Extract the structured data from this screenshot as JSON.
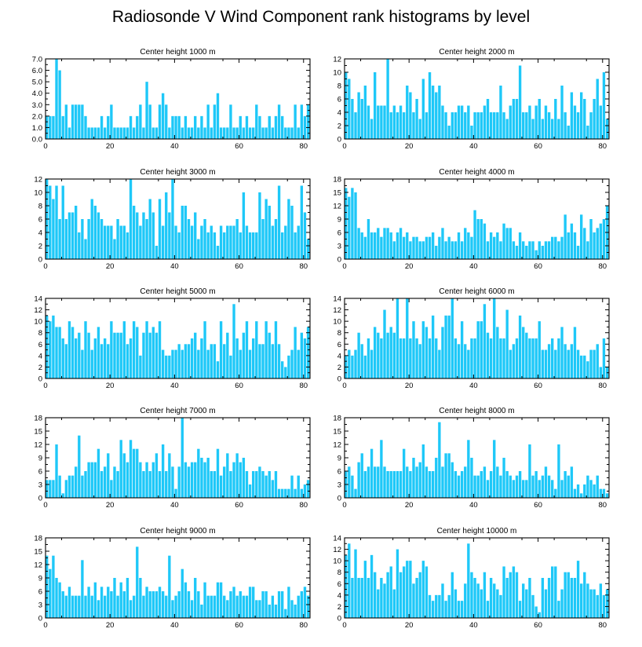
{
  "title": "Radiosonde V Wind Component rank histograms by level",
  "bar_color": "#1EC8F8",
  "chart_data": [
    {
      "type": "bar",
      "title": "Center height 1000 m",
      "xlim": [
        0,
        82
      ],
      "ylim": [
        0,
        7
      ],
      "yticks": [
        0,
        1,
        2,
        3,
        4,
        5,
        6,
        7
      ],
      "ytick_labels": [
        "0.0",
        "1.0",
        "2.0",
        "3.0",
        "4.0",
        "5.0",
        "6.0",
        "7.0"
      ],
      "xticks": [
        0,
        20,
        40,
        60,
        80
      ],
      "values": [
        2,
        2,
        2,
        7,
        6,
        2,
        3,
        1,
        3,
        3,
        3,
        3,
        2,
        1,
        1,
        1,
        1,
        2,
        1,
        2,
        3,
        1,
        1,
        1,
        1,
        1,
        2,
        1,
        2,
        3,
        1,
        5,
        3,
        1,
        1,
        3,
        4,
        3,
        1,
        2,
        2,
        2,
        1,
        2,
        1,
        1,
        2,
        1,
        2,
        1,
        3,
        1,
        3,
        4,
        1,
        1,
        1,
        3,
        1,
        1,
        2,
        1,
        2,
        1,
        1,
        3,
        2,
        1,
        1,
        2,
        1,
        2,
        3,
        2,
        1,
        1,
        1,
        3,
        1,
        3,
        2,
        3
      ]
    },
    {
      "type": "bar",
      "title": "Center height 2000 m",
      "xlim": [
        0,
        82
      ],
      "ylim": [
        0,
        12
      ],
      "yticks": [
        0,
        2,
        4,
        6,
        8,
        10,
        12
      ],
      "ytick_labels": [
        "0",
        "2",
        "4",
        "6",
        "8",
        "10",
        "12"
      ],
      "xticks": [
        0,
        20,
        40,
        60,
        80
      ],
      "values": [
        10,
        9,
        6,
        4,
        7,
        6,
        8,
        5,
        3,
        10,
        5,
        5,
        5,
        12,
        4,
        5,
        4,
        5,
        4,
        8,
        7,
        4,
        6,
        3,
        9,
        4,
        10,
        8,
        7,
        8,
        5,
        4,
        2,
        4,
        4,
        5,
        5,
        4,
        5,
        2,
        4,
        4,
        4,
        5,
        6,
        4,
        4,
        4,
        8,
        4,
        3,
        5,
        6,
        6,
        11,
        4,
        4,
        5,
        3,
        5,
        6,
        3,
        5,
        4,
        3,
        6,
        3,
        8,
        4,
        2,
        7,
        5,
        4,
        7,
        6,
        2,
        4,
        6,
        9,
        5,
        10,
        3
      ]
    },
    {
      "type": "bar",
      "title": "Center height 3000 m",
      "xlim": [
        0,
        82
      ],
      "ylim": [
        0,
        12
      ],
      "yticks": [
        0,
        2,
        4,
        6,
        8,
        10,
        12
      ],
      "ytick_labels": [
        "0",
        "2",
        "4",
        "6",
        "8",
        "10",
        "12"
      ],
      "xticks": [
        0,
        20,
        40,
        60,
        80
      ],
      "values": [
        12,
        11,
        9,
        11,
        6,
        11,
        6,
        7,
        7,
        8,
        4,
        6,
        3,
        6,
        9,
        8,
        7,
        6,
        5,
        5,
        5,
        3,
        6,
        5,
        5,
        4,
        12,
        8,
        7,
        5,
        7,
        6,
        9,
        7,
        2,
        9,
        5,
        10,
        7,
        12,
        5,
        4,
        8,
        8,
        6,
        5,
        7,
        3,
        5,
        6,
        4,
        5,
        4,
        2,
        5,
        4,
        5,
        5,
        5,
        6,
        4,
        10,
        5,
        4,
        4,
        4,
        10,
        6,
        9,
        8,
        5,
        6,
        11,
        4,
        5,
        9,
        8,
        4,
        5,
        11,
        7,
        3
      ]
    },
    {
      "type": "bar",
      "title": "Center height 4000 m",
      "xlim": [
        0,
        82
      ],
      "ylim": [
        0,
        18
      ],
      "yticks": [
        0,
        3,
        6,
        9,
        12,
        15,
        18
      ],
      "ytick_labels": [
        "0",
        "3",
        "6",
        "9",
        "12",
        "15",
        "18"
      ],
      "xticks": [
        0,
        20,
        40,
        60,
        80
      ],
      "values": [
        16,
        14,
        16,
        15,
        7,
        6,
        5,
        9,
        6,
        6,
        7,
        5,
        7,
        7,
        6,
        4,
        6,
        7,
        5,
        6,
        4,
        5,
        5,
        4,
        4,
        5,
        5,
        6,
        3,
        5,
        7,
        4,
        5,
        4,
        4,
        6,
        4,
        7,
        6,
        5,
        11,
        9,
        9,
        8,
        4,
        6,
        5,
        6,
        4,
        8,
        7,
        7,
        4,
        3,
        6,
        4,
        3,
        4,
        4,
        2,
        4,
        3,
        4,
        4,
        5,
        5,
        4,
        5,
        10,
        6,
        8,
        6,
        3,
        10,
        7,
        4,
        9,
        6,
        7,
        8,
        9,
        12
      ]
    },
    {
      "type": "bar",
      "title": "Center height 5000 m",
      "xlim": [
        0,
        82
      ],
      "ylim": [
        0,
        14
      ],
      "yticks": [
        0,
        2,
        4,
        6,
        8,
        10,
        12,
        14
      ],
      "ytick_labels": [
        "0",
        "2",
        "4",
        "6",
        "8",
        "10",
        "12",
        "14"
      ],
      "xticks": [
        0,
        20,
        40,
        60,
        80
      ],
      "values": [
        11,
        10,
        11,
        9,
        9,
        7,
        6,
        10,
        9,
        7,
        8,
        5,
        10,
        8,
        5,
        7,
        9,
        6,
        7,
        6,
        10,
        8,
        8,
        8,
        10,
        6,
        7,
        10,
        9,
        4,
        8,
        10,
        8,
        9,
        8,
        10,
        5,
        4,
        4,
        5,
        5,
        6,
        5,
        6,
        6,
        7,
        8,
        5,
        7,
        10,
        5,
        6,
        6,
        3,
        10,
        6,
        8,
        4,
        13,
        7,
        5,
        8,
        10,
        5,
        7,
        10,
        6,
        6,
        10,
        8,
        6,
        10,
        6,
        3,
        2,
        4,
        5,
        9,
        5,
        8,
        7,
        9
      ]
    },
    {
      "type": "bar",
      "title": "Center height 6000 m",
      "xlim": [
        0,
        82
      ],
      "ylim": [
        0,
        14
      ],
      "yticks": [
        0,
        2,
        4,
        6,
        8,
        10,
        12,
        14
      ],
      "ytick_labels": [
        "0",
        "2",
        "4",
        "6",
        "8",
        "10",
        "12",
        "14"
      ],
      "xticks": [
        0,
        20,
        40,
        60,
        80
      ],
      "values": [
        4,
        5,
        4,
        5,
        8,
        6,
        4,
        7,
        5,
        9,
        8,
        7,
        12,
        8,
        9,
        8,
        14,
        7,
        7,
        14,
        7,
        10,
        7,
        6,
        10,
        9,
        7,
        11,
        7,
        5,
        9,
        11,
        11,
        14,
        7,
        6,
        10,
        6,
        5,
        7,
        7,
        10,
        10,
        13,
        8,
        7,
        14,
        9,
        7,
        7,
        12,
        5,
        6,
        7,
        11,
        9,
        8,
        7,
        7,
        7,
        10,
        5,
        5,
        6,
        7,
        5,
        7,
        9,
        6,
        5,
        6,
        9,
        5,
        4,
        4,
        3,
        5,
        5,
        6,
        2,
        7,
        2
      ]
    },
    {
      "type": "bar",
      "title": "Center height 7000 m",
      "xlim": [
        0,
        82
      ],
      "ylim": [
        0,
        18
      ],
      "yticks": [
        0,
        3,
        6,
        9,
        12,
        15,
        18
      ],
      "ytick_labels": [
        "0",
        "3",
        "6",
        "9",
        "12",
        "15",
        "18"
      ],
      "xticks": [
        0,
        20,
        40,
        60,
        80
      ],
      "values": [
        4,
        4,
        4,
        12,
        5,
        1,
        4,
        5,
        5,
        7,
        14,
        5,
        6,
        8,
        8,
        8,
        11,
        6,
        7,
        10,
        4,
        7,
        6,
        13,
        10,
        8,
        13,
        11,
        11,
        8,
        6,
        8,
        6,
        8,
        10,
        6,
        12,
        6,
        10,
        7,
        2,
        7,
        18,
        8,
        7,
        8,
        8,
        11,
        9,
        8,
        9,
        6,
        6,
        11,
        5,
        7,
        10,
        6,
        8,
        10,
        8,
        9,
        6,
        3,
        6,
        6,
        7,
        6,
        5,
        6,
        4,
        6,
        2,
        2,
        2,
        2,
        5,
        2,
        5,
        2,
        3,
        4
      ]
    },
    {
      "type": "bar",
      "title": "Center height 8000 m",
      "xlim": [
        0,
        82
      ],
      "ylim": [
        0,
        18
      ],
      "yticks": [
        0,
        3,
        6,
        9,
        12,
        15,
        18
      ],
      "ytick_labels": [
        "0",
        "3",
        "6",
        "9",
        "12",
        "15",
        "18"
      ],
      "xticks": [
        0,
        20,
        40,
        60,
        80
      ],
      "values": [
        6,
        7,
        5,
        2,
        8,
        10,
        6,
        7,
        11,
        7,
        7,
        13,
        7,
        6,
        6,
        6,
        6,
        6,
        11,
        7,
        6,
        9,
        7,
        8,
        12,
        7,
        6,
        6,
        9,
        17,
        7,
        10,
        10,
        8,
        6,
        5,
        6,
        7,
        13,
        9,
        5,
        5,
        6,
        7,
        4,
        6,
        13,
        7,
        5,
        9,
        6,
        5,
        4,
        5,
        6,
        4,
        4,
        12,
        5,
        6,
        4,
        5,
        7,
        5,
        4,
        2,
        12,
        4,
        6,
        5,
        7,
        2,
        3,
        1,
        3,
        5,
        4,
        3,
        5,
        2,
        2,
        1
      ]
    },
    {
      "type": "bar",
      "title": "Center height 9000 m",
      "xlim": [
        0,
        82
      ],
      "ylim": [
        0,
        18
      ],
      "yticks": [
        0,
        3,
        6,
        9,
        12,
        15,
        18
      ],
      "ytick_labels": [
        "0",
        "3",
        "6",
        "9",
        "12",
        "15",
        "18"
      ],
      "xticks": [
        0,
        20,
        40,
        60,
        80
      ],
      "values": [
        14,
        11,
        14,
        9,
        8,
        6,
        5,
        7,
        5,
        5,
        5,
        13,
        5,
        7,
        5,
        8,
        4,
        7,
        5,
        7,
        6,
        9,
        5,
        8,
        6,
        9,
        4,
        5,
        16,
        9,
        5,
        7,
        6,
        6,
        6,
        7,
        6,
        5,
        14,
        4,
        5,
        6,
        11,
        8,
        6,
        4,
        9,
        6,
        3,
        8,
        5,
        5,
        5,
        8,
        8,
        5,
        4,
        6,
        7,
        5,
        6,
        5,
        5,
        7,
        7,
        4,
        4,
        6,
        6,
        3,
        5,
        3,
        6,
        6,
        2,
        7,
        4,
        3,
        5,
        6,
        7,
        5
      ]
    },
    {
      "type": "bar",
      "title": "Center height 10000 m",
      "xlim": [
        0,
        82
      ],
      "ylim": [
        0,
        14
      ],
      "yticks": [
        0,
        2,
        4,
        6,
        8,
        10,
        12,
        14
      ],
      "ytick_labels": [
        "0",
        "2",
        "4",
        "6",
        "8",
        "10",
        "12",
        "14"
      ],
      "xticks": [
        0,
        20,
        40,
        60,
        80
      ],
      "values": [
        11,
        13,
        7,
        12,
        7,
        7,
        10,
        7,
        11,
        8,
        5,
        7,
        6,
        8,
        9,
        5,
        12,
        8,
        9,
        10,
        10,
        6,
        7,
        8,
        10,
        9,
        4,
        3,
        4,
        4,
        6,
        3,
        4,
        8,
        5,
        3,
        3,
        6,
        13,
        8,
        7,
        6,
        5,
        8,
        3,
        7,
        6,
        5,
        4,
        9,
        7,
        8,
        9,
        8,
        3,
        6,
        5,
        7,
        4,
        2,
        1,
        7,
        5,
        7,
        9,
        9,
        3,
        5,
        8,
        8,
        7,
        7,
        10,
        6,
        8,
        6,
        5,
        5,
        4,
        6,
        4,
        5
      ]
    }
  ]
}
